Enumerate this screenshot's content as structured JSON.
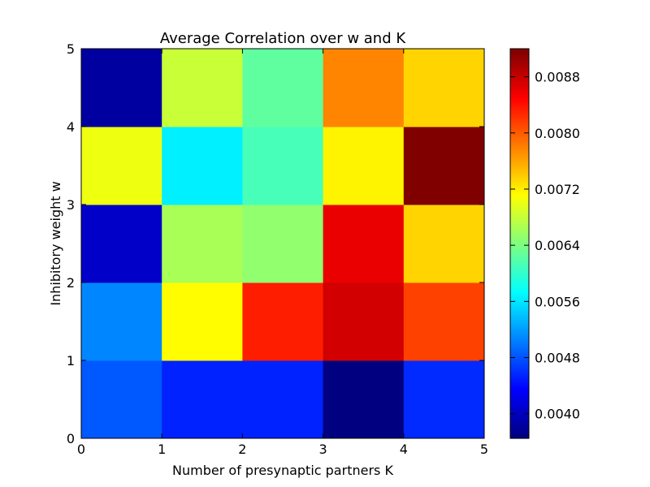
{
  "chart_data": {
    "type": "heatmap",
    "title": "Average Correlation over w and K",
    "xlabel": "Number of presynaptic partners K",
    "ylabel": "Inhibitory weight w",
    "x_ticks": [
      "0",
      "1",
      "2",
      "3",
      "4",
      "5"
    ],
    "y_ticks": [
      "0",
      "1",
      "2",
      "3",
      "4",
      "5"
    ],
    "xlim": [
      0,
      5
    ],
    "ylim": [
      0,
      5
    ],
    "grid": false,
    "colormap": "jet",
    "colorbar": {
      "min": 0.00365,
      "max": 0.0092,
      "ticks": [
        "0.0040",
        "0.0048",
        "0.0056",
        "0.0064",
        "0.0072",
        "0.0080",
        "0.0088"
      ],
      "tick_values": [
        0.004,
        0.0048,
        0.0056,
        0.0064,
        0.0072,
        0.008,
        0.0088
      ]
    },
    "rows": [
      {
        "w_range": [
          0,
          1
        ],
        "values": [
          0.00483,
          0.00453,
          0.00453,
          0.00365,
          0.00457
        ]
      },
      {
        "w_range": [
          1,
          2
        ],
        "values": [
          0.00508,
          0.00713,
          0.00835,
          0.00875,
          0.00815
        ]
      },
      {
        "w_range": [
          2,
          3
        ],
        "values": [
          0.00405,
          0.00665,
          0.00652,
          0.00862,
          0.00735
        ]
      },
      {
        "w_range": [
          3,
          4
        ],
        "values": [
          0.00703,
          0.00565,
          0.00612,
          0.00718,
          0.0092
        ]
      },
      {
        "w_range": [
          4,
          5
        ],
        "values": [
          0.00383,
          0.00682,
          0.00625,
          0.00778,
          0.00735
        ]
      }
    ]
  }
}
